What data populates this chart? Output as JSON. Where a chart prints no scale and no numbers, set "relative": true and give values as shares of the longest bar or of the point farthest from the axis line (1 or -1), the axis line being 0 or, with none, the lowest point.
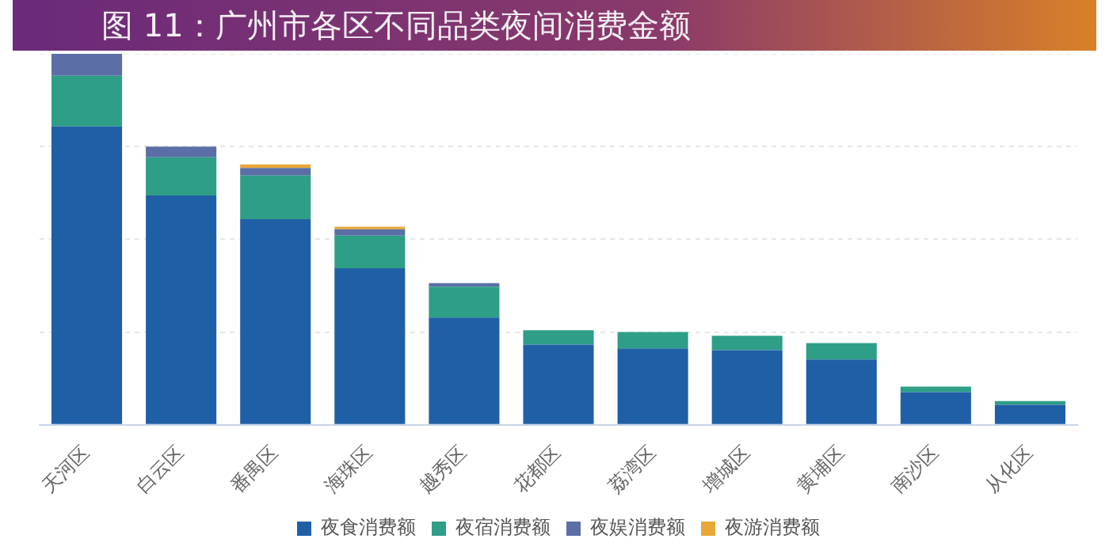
{
  "chart_data": {
    "type": "bar",
    "title": "图 11：广州市各区不同品类夜间消费金额",
    "relative": true,
    "stacked": true,
    "grid": "y",
    "legend": "bottom",
    "categories": [
      "天河区",
      "白云区",
      "番禺区",
      "海珠区",
      "越秀区",
      "花都区",
      "荔湾区",
      "增城区",
      "黄埔区",
      "南沙区",
      "从化区"
    ],
    "series": [
      {
        "name": "夜食消费额",
        "color": "#1f5fa6",
        "values": [
          0.804,
          0.618,
          0.554,
          0.422,
          0.289,
          0.216,
          0.206,
          0.201,
          0.176,
          0.088,
          0.054
        ]
      },
      {
        "name": "夜宿消费额",
        "color": "#2e9e87",
        "values": [
          0.137,
          0.103,
          0.118,
          0.088,
          0.083,
          0.039,
          0.044,
          0.039,
          0.044,
          0.015,
          0.01
        ]
      },
      {
        "name": "夜娱消费额",
        "color": "#5b6fa6",
        "values": [
          0.059,
          0.029,
          0.02,
          0.017,
          0.01,
          0,
          0,
          0,
          0,
          0,
          0
        ]
      },
      {
        "name": "夜游消费额",
        "color": "#e8a838",
        "values": [
          0,
          0,
          0.01,
          0.007,
          0,
          0,
          0,
          0,
          0,
          0,
          0
        ]
      }
    ]
  }
}
